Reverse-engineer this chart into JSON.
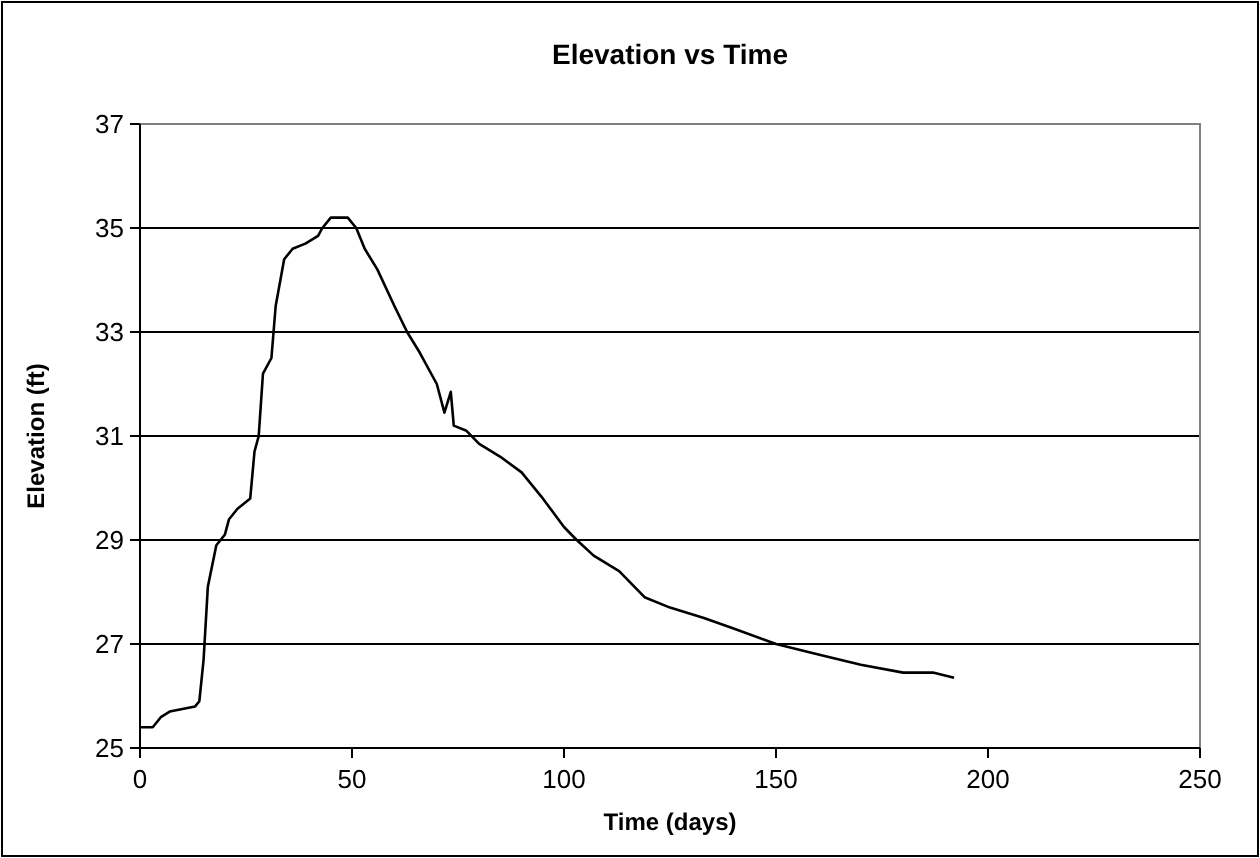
{
  "chart_data": {
    "type": "line",
    "title": "Elevation vs Time",
    "xlabel": "Time (days)",
    "ylabel": "Elevation (ft)",
    "xlim": [
      0,
      250
    ],
    "xticks": [
      0,
      50,
      100,
      150,
      200,
      250
    ],
    "ylim": [
      25,
      37
    ],
    "yticks": [
      25,
      27,
      29,
      31,
      33,
      35,
      37
    ],
    "grid": "y",
    "series": [
      {
        "color": "#000000",
        "x": [
          0,
          3,
          5,
          7,
          10,
          13,
          14,
          15,
          16,
          18,
          20,
          21,
          23,
          26,
          27,
          28,
          29,
          31,
          32,
          34,
          36,
          39,
          42,
          43,
          45,
          49,
          51,
          53,
          56,
          60,
          63,
          66,
          70,
          71.8,
          73.3,
          74,
          77,
          80,
          85,
          90,
          95,
          100,
          103,
          107,
          113,
          119,
          125,
          133,
          140,
          150,
          160,
          170,
          180,
          187,
          192
        ],
        "values": [
          25.4,
          25.4,
          25.6,
          25.7,
          25.75,
          25.8,
          25.9,
          26.7,
          28.1,
          28.9,
          29.1,
          29.4,
          29.6,
          29.8,
          30.7,
          31.0,
          32.2,
          32.5,
          33.5,
          34.4,
          34.6,
          34.7,
          34.85,
          35.0,
          35.2,
          35.2,
          35.0,
          34.6,
          34.2,
          33.5,
          33.0,
          32.6,
          32.0,
          31.45,
          31.85,
          31.2,
          31.1,
          30.85,
          30.6,
          30.3,
          29.8,
          29.25,
          29.0,
          28.7,
          28.4,
          27.9,
          27.7,
          27.5,
          27.3,
          27.0,
          26.8,
          26.6,
          26.45,
          26.45,
          26.35
        ]
      }
    ]
  }
}
